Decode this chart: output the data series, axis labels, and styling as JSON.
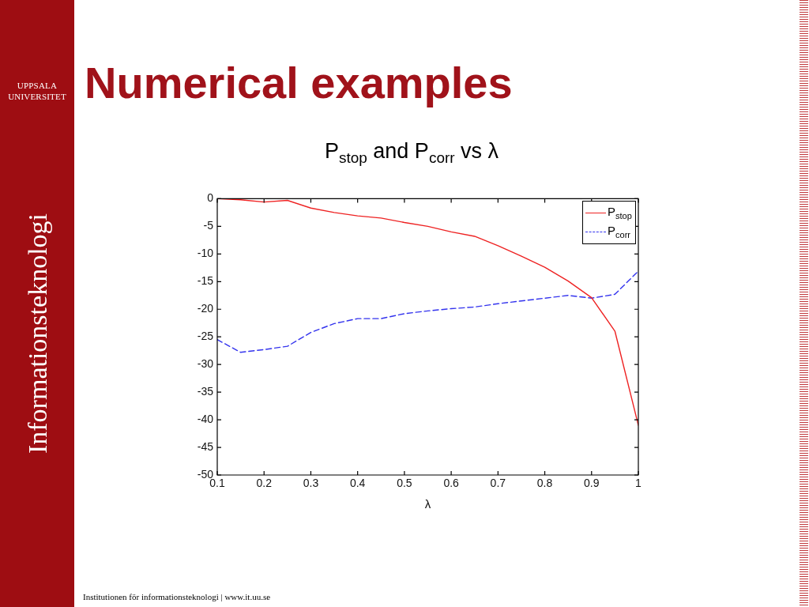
{
  "chart_data": {
    "type": "line",
    "title": "Numerical examples",
    "subtitle": "P$_{stop}$ and P$_{corr}$ vs λ",
    "xlabel": "λ",
    "x": [
      0.1,
      0.15,
      0.2,
      0.25,
      0.3,
      0.35,
      0.4,
      0.45,
      0.5,
      0.55,
      0.6,
      0.65,
      0.7,
      0.75,
      0.8,
      0.85,
      0.9,
      0.95,
      1
    ],
    "series": [
      {
        "name": "P$_{stop}$",
        "color": "#ee2222",
        "line_style": "solid",
        "values": [
          0,
          -0.2,
          -0.6,
          -0.3,
          -1.7,
          -2.5,
          -3.1,
          -3.5,
          -4.3,
          -5.0,
          -6.0,
          -6.8,
          -8.5,
          -10.4,
          -12.4,
          -14.9,
          -17.9,
          -24.0,
          -41
        ]
      },
      {
        "name": "P$_{corr}$",
        "color": "#3333ee",
        "line_style": "dashed",
        "values": [
          -25.5,
          -27.8,
          -27.3,
          -26.7,
          -24.2,
          -22.6,
          -21.7,
          -21.7,
          -20.8,
          -20.3,
          -19.9,
          -19.6,
          -19.0,
          -18.5,
          -18.0,
          -17.5,
          -18.0,
          -17.3,
          -13.1
        ]
      }
    ],
    "xlim": [
      0.1,
      1
    ],
    "xticks": [
      0.1,
      0.2,
      0.3,
      0.4,
      0.5,
      0.6,
      0.7,
      0.8,
      0.9,
      1
    ],
    "ylim": [
      -50,
      0
    ],
    "yticks": [
      -50,
      -45,
      -40,
      -35,
      -30,
      -25,
      -20,
      -15,
      -10,
      -5,
      0
    ],
    "legend": "top right",
    "annotations": [
      "UPPSALA UNIVERSITET",
      "Informationsteknologi",
      "Institutionen för informationsteknologi | www.it.uu.se"
    ]
  }
}
